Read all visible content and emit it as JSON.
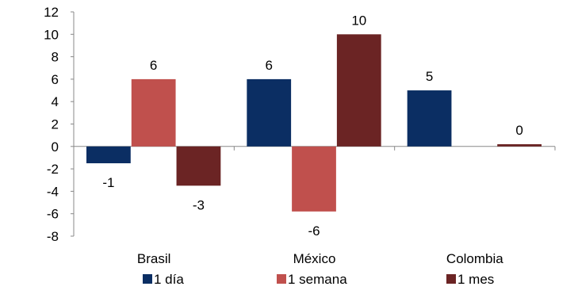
{
  "chart_data": {
    "type": "bar",
    "categories": [
      "Brasil",
      "México",
      "Colombia"
    ],
    "series": [
      {
        "name": "1 día",
        "color": "#0b2e63",
        "values": [
          -1.5,
          6,
          5
        ],
        "labels": [
          "-1",
          "6",
          "5"
        ]
      },
      {
        "name": "1 semana",
        "color": "#c0504d",
        "values": [
          6,
          -5.8,
          null
        ],
        "labels": [
          "6",
          "-6",
          ""
        ]
      },
      {
        "name": "1 mes",
        "color": "#6b2424",
        "values": [
          -3.5,
          10,
          0.2
        ],
        "labels": [
          "-3",
          "10",
          "0"
        ]
      }
    ],
    "ylim": [
      -8,
      12
    ],
    "yticks": [
      12,
      10,
      8,
      6,
      4,
      2,
      0,
      -2,
      -4,
      -6,
      -8
    ],
    "grid": false,
    "legend": "bottom"
  }
}
